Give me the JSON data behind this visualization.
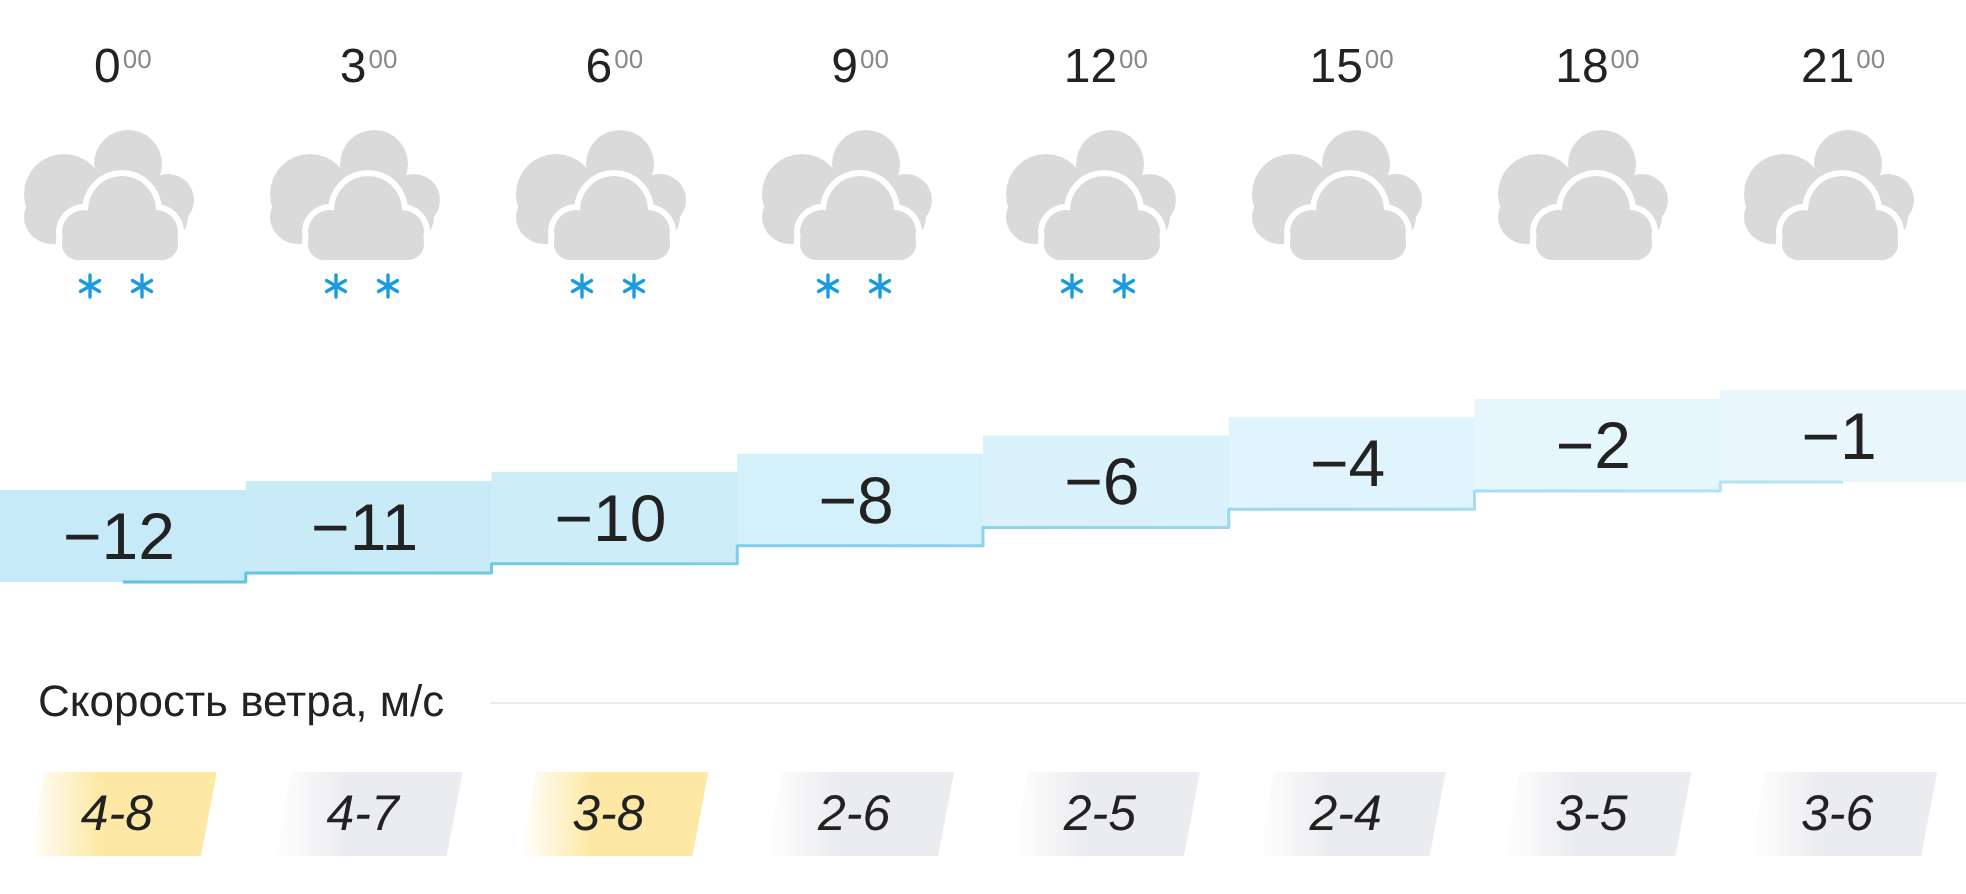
{
  "chart_data": [
    {
      "type": "step",
      "categories": [
        "0$^{00}$",
        "3$^{00}$",
        "6$^{00}$",
        "9$^{00}$",
        "12$^{00}$",
        "15$^{00}$",
        "18$^{00}$",
        "21$^{00}$"
      ],
      "values": [
        -12,
        -11,
        -10,
        -8,
        -6,
        -4,
        -2,
        -1
      ],
      "colors": [
        "#c6eaf8",
        "#c9ebf8",
        "#cdedf9",
        "#d4f0fa",
        "#daf2fb",
        "#dff4fc",
        "#e5f6fc",
        "#e9f7fd"
      ],
      "value_labels": [
        "−12",
        "−11",
        "−10",
        "−8",
        "−6",
        "−4",
        "−2",
        "−1"
      ]
    },
    {
      "type": "other",
      "title": "Скорость ветра, м/с",
      "value_labels": [
        "4-8",
        "4-7",
        "3-8",
        "2-6",
        "2-5",
        "2-4",
        "3-5",
        "3-6"
      ],
      "colors": [
        "#fde9a5",
        "#ebecef",
        "#fde9a5",
        "#ebecef",
        "#ebecef",
        "#ebecef",
        "#ebecef",
        "#ebecef"
      ]
    }
  ]
}
